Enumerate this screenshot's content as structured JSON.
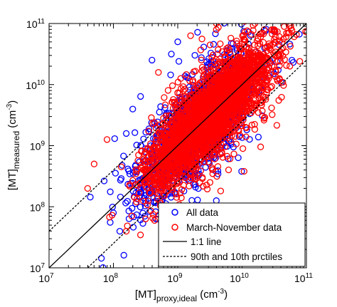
{
  "chart_data": {
    "type": "scatter",
    "x_scale": "log",
    "y_scale": "log",
    "xlim": [
      10000000.0,
      100000000000.0
    ],
    "ylim": [
      10000000.0,
      100000000000.0
    ],
    "x_ticks": [
      {
        "base": "10",
        "exp": "7",
        "value": 10000000.0
      },
      {
        "base": "10",
        "exp": "8",
        "value": 100000000.0
      },
      {
        "base": "10",
        "exp": "9",
        "value": 1000000000.0
      },
      {
        "base": "10",
        "exp": "10",
        "value": 10000000000.0
      },
      {
        "base": "10",
        "exp": "11",
        "value": 100000000000.0
      }
    ],
    "y_ticks": [
      {
        "base": "10",
        "exp": "7",
        "value": 10000000.0
      },
      {
        "base": "10",
        "exp": "8",
        "value": 100000000.0
      },
      {
        "base": "10",
        "exp": "9",
        "value": 1000000000.0
      },
      {
        "base": "10",
        "exp": "10",
        "value": 10000000000.0
      },
      {
        "base": "10",
        "exp": "11",
        "value": 100000000000.0
      }
    ],
    "xlabel": {
      "main": "[MT]",
      "sub": "proxy,ideal",
      "unit_open": " (cm",
      "unit_exp": "-3",
      "unit_close": ")"
    },
    "ylabel": {
      "main": "[MT]",
      "sub": "measured",
      "unit_open": " (cm",
      "unit_exp": "-3",
      "unit_close": ")"
    },
    "legend_position": "bottom-right",
    "grid": false,
    "series": [
      {
        "name": "All data",
        "marker": "open-circle",
        "color": "#0000ff",
        "cloud": {
          "log_center": 9.3,
          "log_spread": 0.45,
          "log_scatter": 0.3,
          "log_scatter_outer": 0.55,
          "n_points": 1600
        },
        "outliers": [
          [
            8.0,
            7.9
          ],
          [
            8.1,
            7.6
          ],
          [
            9.5,
            7.1
          ],
          [
            8.6,
            10.4
          ],
          [
            8.9,
            10.5
          ],
          [
            9.0,
            10.7
          ],
          [
            8.3,
            9.6
          ],
          [
            8.5,
            8.1
          ],
          [
            9.6,
            8.1
          ],
          [
            8.2,
            9.2
          ]
        ]
      },
      {
        "name": "March-November data",
        "marker": "open-circle",
        "color": "#ff0000",
        "cloud": {
          "log_center": 9.5,
          "log_spread": 0.45,
          "log_scatter": 0.27,
          "log_scatter_outer": 0.5,
          "n_points": 3200
        },
        "outliers": [
          [
            7.6,
            8.3
          ],
          [
            7.7,
            8.7
          ],
          [
            8.2,
            7.6
          ],
          [
            8.5,
            7.8
          ],
          [
            9.6,
            7.4
          ],
          [
            9.2,
            10.8
          ],
          [
            9.6,
            10.9
          ],
          [
            10.2,
            11.0
          ],
          [
            9.6,
            11.0
          ],
          [
            7.9,
            9.1
          ],
          [
            8.7,
            10.2
          ]
        ]
      }
    ],
    "lines": [
      {
        "name": "1:1 line",
        "style": "solid",
        "color": "#000000",
        "log_offset": 0
      },
      {
        "name": "90th and 10th prctiles",
        "style": "dashed",
        "color": "#000000",
        "log_offset": 0.6
      },
      {
        "name": "",
        "style": "dashed",
        "color": "#000000",
        "log_offset": -0.6
      }
    ]
  }
}
